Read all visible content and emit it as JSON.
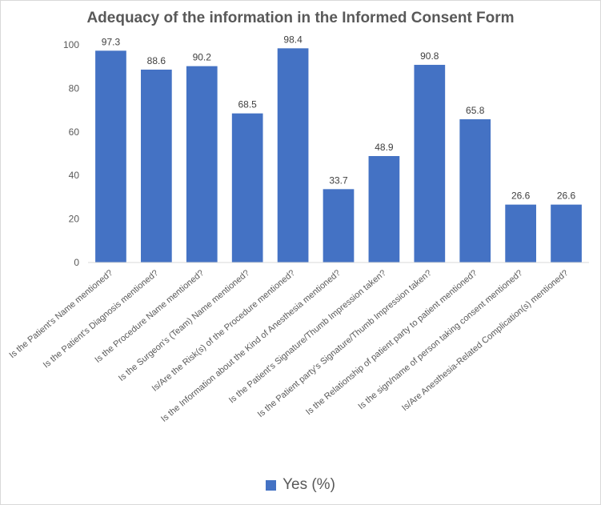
{
  "chart_data": {
    "type": "bar",
    "title": "Adequacy of the information in the Informed Consent Form",
    "categories": [
      "Is the Patient's Name mentioned?",
      "Is the Patient's Diagnosis mentioned?",
      "Is the Procedure Name mentioned?",
      "Is the Surgeon's (Team) Name mentioned?",
      "Is/Are the Risk(s) of the Procedure mentioned?",
      "Is the Information about the Kind of Anesthesia mentioned?",
      "Is the Patient's Signature/Thumb Impression taken?",
      "Is the Patient party's Signature/Thumb Impression taken?",
      "Is the Relationship of patient party to patient mentioned?",
      "Is the sign/name of person taking consent mentioned?",
      "Is/Are Anesthesia-Related Complication(s) mentioned?"
    ],
    "series": [
      {
        "name": "Yes (%)",
        "color": "#4472c4",
        "values": [
          97.3,
          88.6,
          90.2,
          68.5,
          98.4,
          33.7,
          48.9,
          90.8,
          65.8,
          26.6,
          26.6
        ]
      }
    ],
    "data_labels": [
      "97.3",
      "88.6",
      "90.2",
      "68.5",
      "98.4",
      "33.7",
      "48.9",
      "90.8",
      "65.8",
      "26.6",
      "26.6"
    ],
    "y_ticks": [
      "0",
      "20",
      "40",
      "60",
      "80",
      "100"
    ],
    "ylim": [
      0,
      100
    ],
    "grid": false,
    "legend_position": "bottom"
  }
}
